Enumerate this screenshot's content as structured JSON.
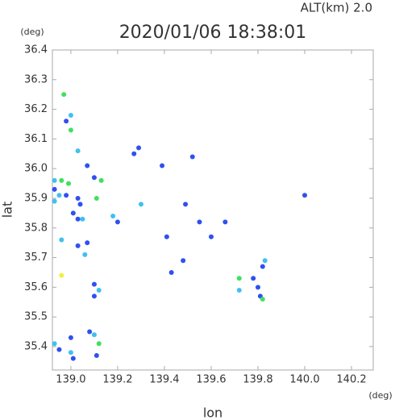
{
  "chart_data": {
    "type": "scatter",
    "title": "2020/01/06 18:38:01",
    "subtitle": "ALT(km) 2.0",
    "xlabel": "lon",
    "ylabel": "lat",
    "x_unit": "(deg)",
    "y_unit": "(deg)",
    "xlim": [
      138.921,
      140.293
    ],
    "ylim": [
      35.321,
      36.4
    ],
    "xticks": [
      {
        "value": 139,
        "label": "139.0"
      },
      139.2,
      139.4,
      139.6,
      139.8,
      {
        "value": 140,
        "label": "140.0"
      },
      140.2
    ],
    "yticks": [
      36.4,
      36.3,
      36.2,
      36.1,
      {
        "value": 36,
        "label": "36.0"
      },
      35.9,
      35.8,
      35.7,
      35.6,
      35.5,
      35.4
    ],
    "grid": false,
    "x": [
      138.97,
      139.0,
      138.98,
      139.0,
      139.03,
      139.07,
      139.1,
      139.13,
      138.93,
      138.96,
      138.99,
      138.93,
      138.95,
      138.98,
      138.93,
      139.03,
      139.04,
      139.01,
      139.03,
      139.05,
      139.11,
      139.18,
      139.2,
      138.96,
      139.03,
      139.06,
      139.07,
      139.27,
      139.29,
      139.39,
      139.52,
      139.3,
      139.49,
      139.55,
      139.6,
      139.66,
      139.41,
      139.48,
      139.43,
      140.0,
      139.83,
      139.82,
      139.72,
      139.78,
      139.8,
      139.72,
      139.81,
      139.82,
      138.96,
      139.1,
      139.12,
      139.1,
      139.08,
      139.1,
      139.12,
      139.0,
      138.95,
      139.0,
      139.01,
      139.11,
      138.93
    ],
    "y": [
      36.25,
      36.18,
      36.16,
      36.13,
      36.06,
      36.01,
      35.97,
      35.96,
      35.96,
      35.96,
      35.95,
      35.93,
      35.91,
      35.91,
      35.89,
      35.9,
      35.88,
      35.85,
      35.83,
      35.83,
      35.9,
      35.84,
      35.82,
      35.76,
      35.74,
      35.71,
      35.75,
      36.05,
      36.07,
      36.01,
      36.04,
      35.88,
      35.88,
      35.82,
      35.77,
      35.82,
      35.77,
      35.69,
      35.65,
      35.91,
      35.69,
      35.67,
      35.63,
      35.63,
      35.6,
      35.59,
      35.57,
      35.56,
      35.64,
      35.61,
      35.59,
      35.57,
      35.45,
      35.44,
      35.41,
      35.43,
      35.39,
      35.38,
      35.36,
      35.37,
      35.41
    ],
    "colors": [
      "#40e060",
      "#40c0f0",
      "#3050f0",
      "#40e060",
      "#40c0f0",
      "#3050f0",
      "#3050f0",
      "#40e060",
      "#40c0f0",
      "#40e060",
      "#40e060",
      "#3050f0",
      "#40c0f0",
      "#3050f0",
      "#40c0f0",
      "#3050f0",
      "#3050f0",
      "#3050f0",
      "#3050f0",
      "#40c0f0",
      "#40e060",
      "#40c0f0",
      "#3050f0",
      "#40c0f0",
      "#3050f0",
      "#40c0f0",
      "#3050f0",
      "#3050f0",
      "#3050f0",
      "#3050f0",
      "#3050f0",
      "#40c0f0",
      "#3050f0",
      "#3050f0",
      "#3050f0",
      "#3050f0",
      "#3050f0",
      "#3050f0",
      "#3050f0",
      "#3050f0",
      "#40c0f0",
      "#3050f0",
      "#40e060",
      "#3050f0",
      "#3050f0",
      "#40c0f0",
      "#3050f0",
      "#40e060",
      "#f0f040",
      "#3050f0",
      "#40c0f0",
      "#3050f0",
      "#3050f0",
      "#40c0f0",
      "#40e060",
      "#3050f0",
      "#3050f0",
      "#40c0f0",
      "#3050f0",
      "#3050f0",
      "#40c0f0"
    ]
  }
}
